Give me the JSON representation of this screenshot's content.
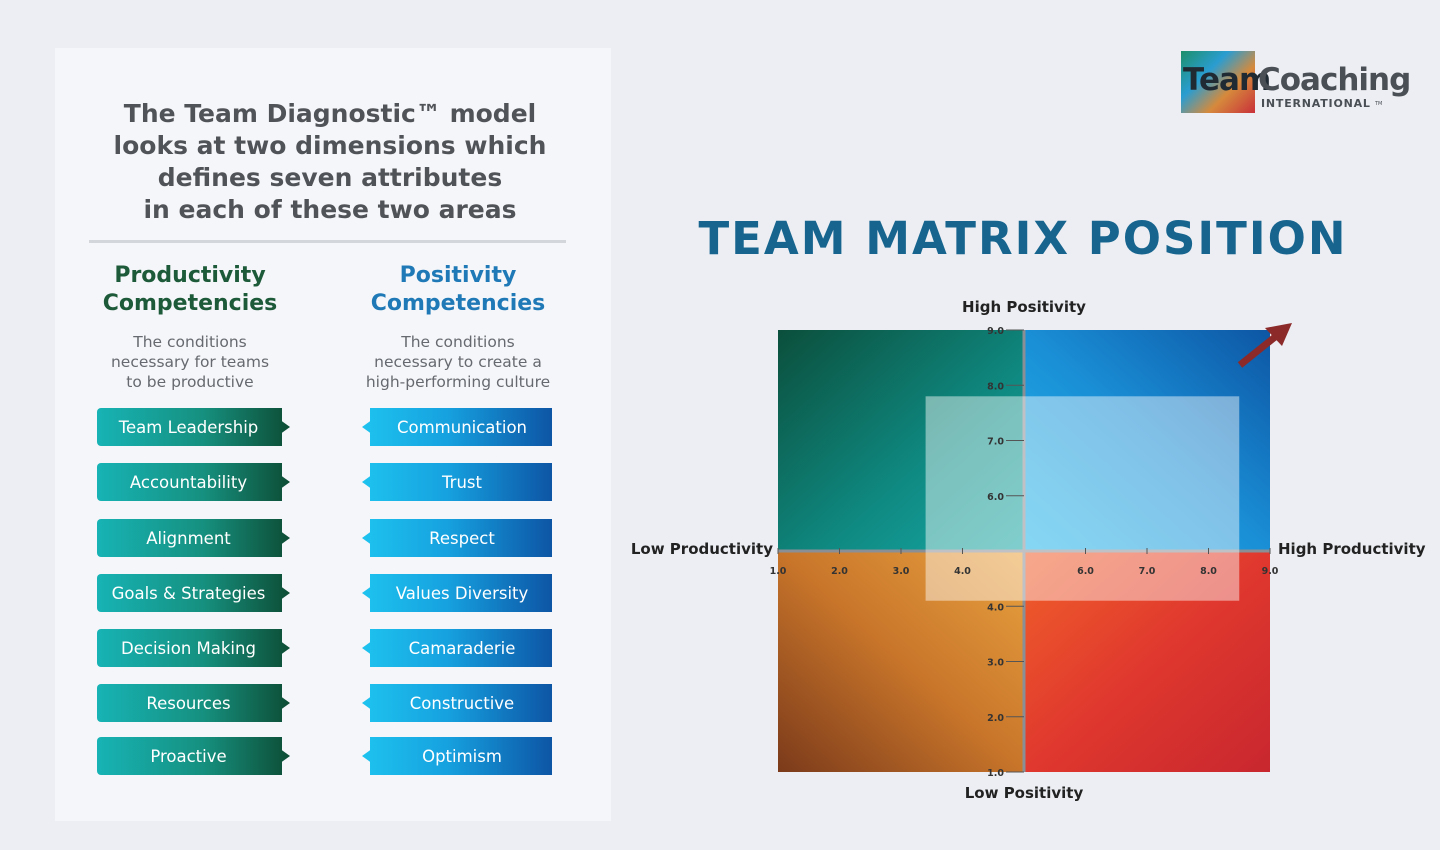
{
  "logo": {
    "word1": "Team",
    "word2": "Coaching",
    "subtitle": "INTERNATIONAL",
    "mark": "TM"
  },
  "intro": {
    "lines": [
      "The Team Diagnostic™ model",
      "looks at two dimensions which",
      "defines seven attributes",
      "in each of these two areas"
    ]
  },
  "productivity": {
    "title_lines": [
      "Productivity",
      "Competencies"
    ],
    "description_lines": [
      "The conditions",
      "necessary for teams",
      "to be productive"
    ],
    "items": [
      "Team Leadership",
      "Accountability",
      "Alignment",
      "Goals & Strategies",
      "Decision Making",
      "Resources",
      "Proactive"
    ]
  },
  "positivity": {
    "title_lines": [
      "Positivity",
      "Competencies"
    ],
    "description_lines": [
      "The conditions",
      "necessary to create a",
      "high-performing culture"
    ],
    "items": [
      "Communication",
      "Trust",
      "Respect",
      "Values Diversity",
      "Camaraderie",
      "Constructive",
      "Optimism"
    ]
  },
  "matrix": {
    "title": "TEAM MATRIX POSITION",
    "top_label": "High Positivity",
    "bottom_label": "Low Positivity",
    "left_label": "Low Productivity",
    "right_label": "High Productivity",
    "xlim": [
      1,
      9
    ],
    "ylim": [
      1,
      9
    ],
    "xticks": [
      {
        "value": 1,
        "label": "1.0"
      },
      {
        "value": 2,
        "label": "2.0"
      },
      {
        "value": 3,
        "label": "3.0"
      },
      {
        "value": 4,
        "label": "4.0"
      },
      {
        "value": 6,
        "label": "6.0"
      },
      {
        "value": 7,
        "label": "7.0"
      },
      {
        "value": 8,
        "label": "8.0"
      },
      {
        "value": 9,
        "label": "9.0"
      }
    ],
    "yticks": [
      {
        "value": 1,
        "label": "1.0"
      },
      {
        "value": 2,
        "label": "2.0"
      },
      {
        "value": 3,
        "label": "3.0"
      },
      {
        "value": 4,
        "label": "4.0"
      },
      {
        "value": 6,
        "label": "6.0"
      },
      {
        "value": 7,
        "label": "7.0"
      },
      {
        "value": 8,
        "label": "8.0"
      },
      {
        "value": 9,
        "label": "9.0"
      }
    ],
    "team_position": {
      "x": [
        3.4,
        8.5
      ],
      "y": [
        4.1,
        7.8
      ]
    }
  }
}
